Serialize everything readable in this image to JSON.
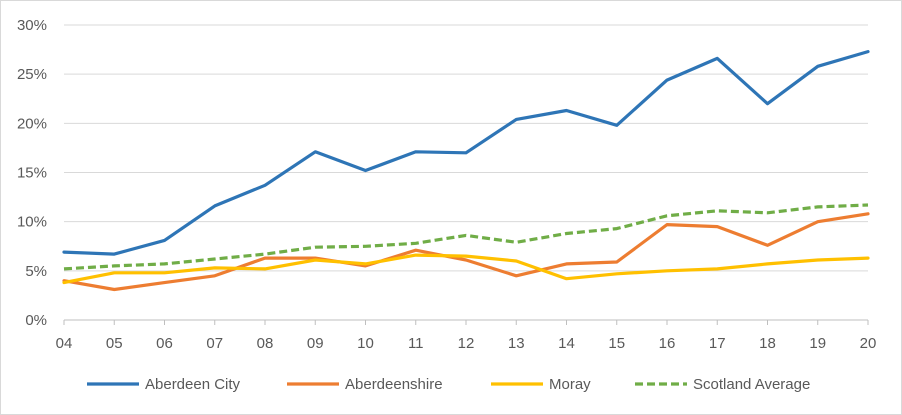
{
  "chart_data": {
    "type": "line",
    "title": "",
    "xlabel": "",
    "ylabel": "",
    "categories": [
      "04",
      "05",
      "06",
      "07",
      "08",
      "09",
      "10",
      "11",
      "12",
      "13",
      "14",
      "15",
      "16",
      "17",
      "18",
      "19",
      "20"
    ],
    "ylim": [
      0,
      30
    ],
    "yticks": [
      "0%",
      "5%",
      "10%",
      "15%",
      "20%",
      "25%",
      "30%"
    ],
    "grid": true,
    "legend_position": "bottom",
    "series": [
      {
        "name": "Aberdeen City",
        "color": "#2E75B6",
        "dash": "solid",
        "values": [
          6.9,
          6.7,
          8.1,
          11.6,
          13.7,
          17.1,
          15.2,
          17.1,
          17.0,
          20.4,
          21.3,
          19.8,
          24.4,
          26.6,
          22.0,
          25.8,
          27.3
        ]
      },
      {
        "name": "Aberdeenshire",
        "color": "#ED7D31",
        "dash": "solid",
        "values": [
          4.0,
          3.1,
          3.8,
          4.5,
          6.3,
          6.3,
          5.5,
          7.1,
          6.1,
          4.5,
          5.7,
          5.9,
          9.7,
          9.5,
          7.6,
          10.0,
          10.8
        ]
      },
      {
        "name": "Moray",
        "color": "#FFC000",
        "dash": "solid",
        "values": [
          3.8,
          4.8,
          4.8,
          5.3,
          5.2,
          6.1,
          5.7,
          6.6,
          6.5,
          6.0,
          4.2,
          4.7,
          5.0,
          5.2,
          5.7,
          6.1,
          6.3
        ]
      },
      {
        "name": "Scotland Average",
        "color": "#70AD47",
        "dash": "dashed",
        "values": [
          5.2,
          5.5,
          5.7,
          6.2,
          6.7,
          7.4,
          7.5,
          7.8,
          8.6,
          7.9,
          8.8,
          9.3,
          10.6,
          11.1,
          10.9,
          11.5,
          11.7
        ]
      }
    ]
  }
}
